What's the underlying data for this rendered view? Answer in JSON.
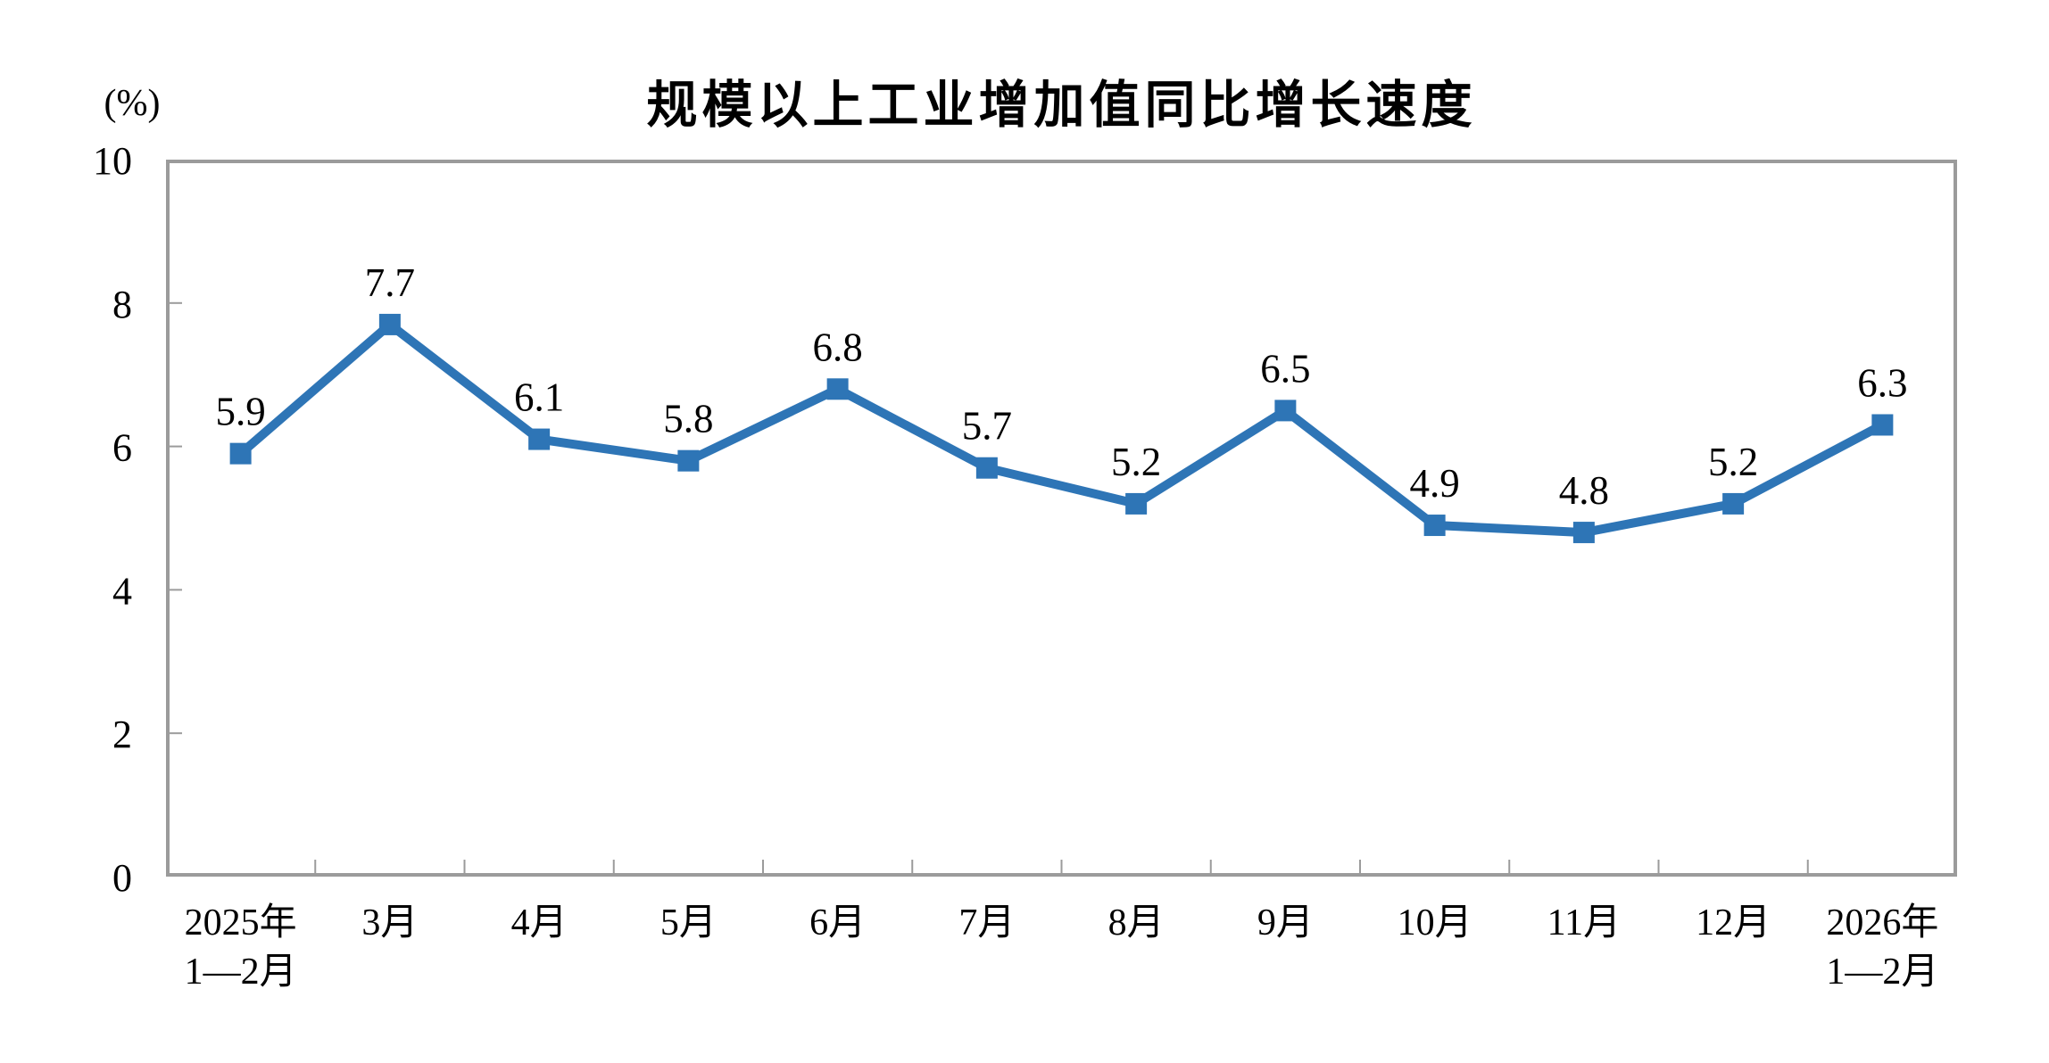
{
  "chart_data": {
    "type": "line",
    "title": "规模以上工业增加值同比增长速度",
    "unit_label": "(%)",
    "categories": [
      [
        "2025年",
        "1—2月"
      ],
      [
        "3月"
      ],
      [
        "4月"
      ],
      [
        "5月"
      ],
      [
        "6月"
      ],
      [
        "7月"
      ],
      [
        "8月"
      ],
      [
        "9月"
      ],
      [
        "10月"
      ],
      [
        "11月"
      ],
      [
        "12月"
      ],
      [
        "2026年",
        "1—2月"
      ]
    ],
    "values": [
      5.9,
      7.7,
      6.1,
      5.8,
      6.8,
      5.7,
      5.2,
      6.5,
      4.9,
      4.8,
      5.2,
      6.3
    ],
    "data_labels": [
      "5.9",
      "7.7",
      "6.1",
      "5.8",
      "6.8",
      "5.7",
      "5.2",
      "6.5",
      "4.9",
      "4.8",
      "5.2",
      "6.3"
    ],
    "ylim": [
      0,
      10
    ],
    "yticks": [
      0,
      2,
      4,
      6,
      8,
      10
    ],
    "ytick_labels": [
      "0",
      "2",
      "4",
      "6",
      "8",
      "10"
    ],
    "grid": false,
    "legend": "none",
    "marker": "square",
    "line_color": "#2E75B6",
    "axis_color": "#9B9B9B",
    "label_color": "#000000"
  }
}
